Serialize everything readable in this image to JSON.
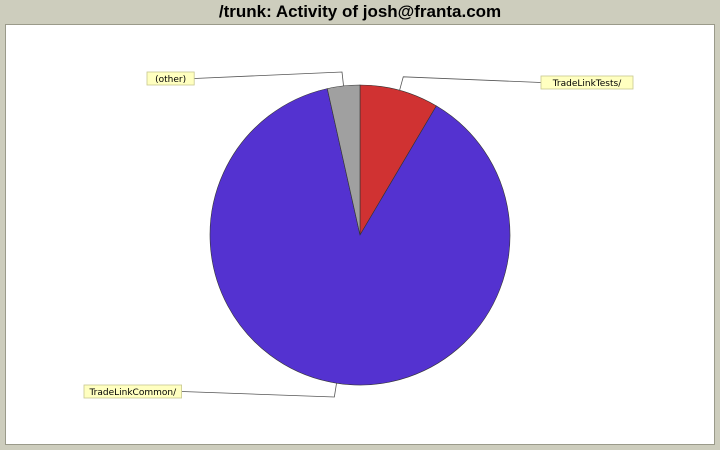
{
  "title": "/trunk: Activity of josh@franta.com",
  "chart_data": {
    "type": "pie",
    "title": "/trunk: Activity of josh@franta.com",
    "slices": [
      {
        "label": "TradeLinkTests/",
        "value": 8.5,
        "color": "#d03232"
      },
      {
        "label": "TradeLinkCommon/",
        "value": 88.0,
        "color": "#5432d0"
      },
      {
        "label": "(other)",
        "value": 3.5,
        "color": "#a0a0a0"
      }
    ]
  }
}
